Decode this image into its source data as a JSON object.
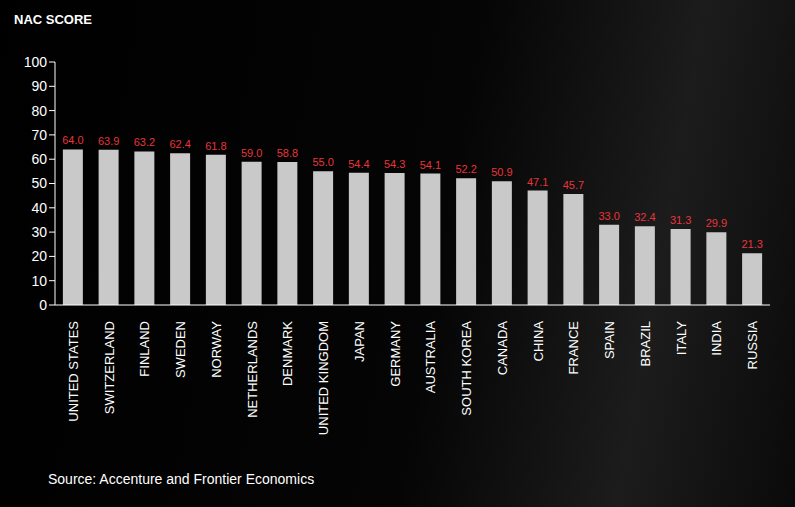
{
  "chart_data": {
    "type": "bar",
    "ylabel": "NAC SCORE",
    "annotation": "Source: Accenture and Frontier Economics",
    "categories": [
      "UNITED STATES",
      "SWITZERLAND",
      "FINLAND",
      "SWEDEN",
      "NORWAY",
      "NETHERLANDS",
      "DENMARK",
      "UNITED KINGDOM",
      "JAPAN",
      "GERMANY",
      "AUSTRALIA",
      "SOUTH KOREA",
      "CANADA",
      "CHINA",
      "FRANCE",
      "SPAIN",
      "BRAZIL",
      "ITALY",
      "INDIA",
      "RUSSIA"
    ],
    "values": [
      64.0,
      63.9,
      63.2,
      62.4,
      61.8,
      59.0,
      58.8,
      55.0,
      54.4,
      54.3,
      54.1,
      52.2,
      50.9,
      47.1,
      45.7,
      33.0,
      32.4,
      31.3,
      29.9,
      21.3
    ],
    "value_labels": [
      "64.0",
      "63.9",
      "63.2",
      "62.4",
      "61.8",
      "59.0",
      "58.8",
      "55.0",
      "54.4",
      "54.3",
      "54.1",
      "52.2",
      "50.9",
      "47.1",
      "45.7",
      "33.0",
      "32.4",
      "31.3",
      "29.9",
      "21.3"
    ],
    "color": "#c9c9c9",
    "label_color": "#e8343a",
    "ylim": [
      0,
      100
    ],
    "yticks": [
      0,
      10,
      20,
      30,
      40,
      50,
      60,
      70,
      80,
      90,
      100
    ],
    "grid": false,
    "data_labels": true
  }
}
